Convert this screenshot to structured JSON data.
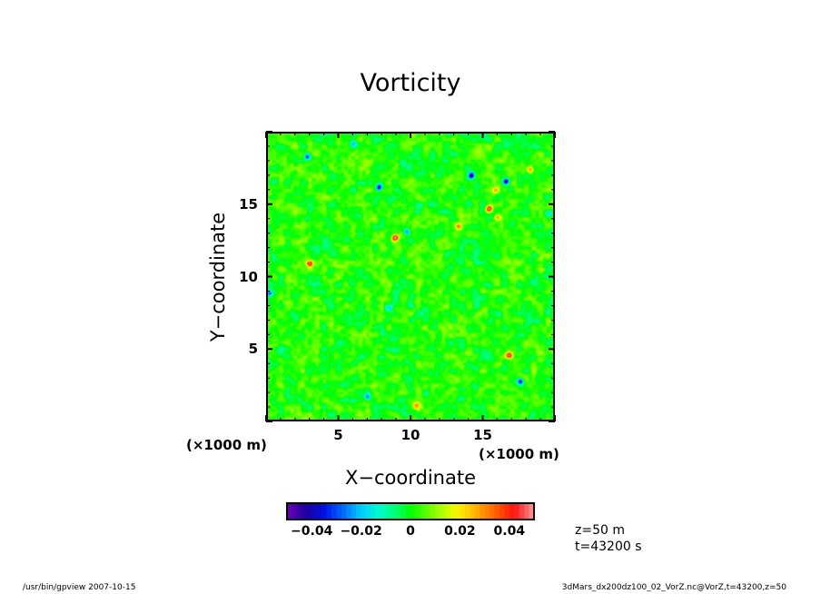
{
  "chart_data": {
    "type": "heatmap",
    "title": "Vorticity",
    "xlabel": "X−coordinate",
    "ylabel": "Y−coordinate",
    "x_unit": "(×1000 m)",
    "y_unit": "(×1000 m)",
    "xlim": [
      0,
      20
    ],
    "ylim": [
      0,
      20
    ],
    "x_ticks": [
      {
        "v": 5,
        "label": "5"
      },
      {
        "v": 10,
        "label": "10"
      },
      {
        "v": 15,
        "label": "15"
      }
    ],
    "y_ticks": [
      {
        "v": 5,
        "label": "5"
      },
      {
        "v": 10,
        "label": "10"
      },
      {
        "v": 15,
        "label": "15"
      }
    ],
    "minor_tick_step": 1,
    "colorbar": {
      "range": [
        -0.05,
        0.05
      ],
      "levels": 50,
      "ticks": [
        {
          "v": -0.04,
          "label": "−0.04"
        },
        {
          "v": -0.02,
          "label": "−0.02"
        },
        {
          "v": 0,
          "label": "0"
        },
        {
          "v": 0.02,
          "label": "0.02"
        },
        {
          "v": 0.04,
          "label": "0.04"
        }
      ],
      "color_stops": [
        [
          -0.05,
          "#6a00b4"
        ],
        [
          -0.042,
          "#1c00a0"
        ],
        [
          -0.035,
          "#0010e0"
        ],
        [
          -0.028,
          "#0060ff"
        ],
        [
          -0.02,
          "#00ccff"
        ],
        [
          -0.012,
          "#00ffc8"
        ],
        [
          -0.004,
          "#00ff50"
        ],
        [
          0,
          "#00ff00"
        ],
        [
          0.008,
          "#70ff00"
        ],
        [
          0.016,
          "#d8ff00"
        ],
        [
          0.02,
          "#ffee00"
        ],
        [
          0.028,
          "#ffa000"
        ],
        [
          0.036,
          "#ff5000"
        ],
        [
          0.042,
          "#ff1010"
        ],
        [
          0.05,
          "#ff9898"
        ]
      ]
    },
    "background_noise_amplitude": 0.009,
    "vortices": [
      {
        "x": 6.0,
        "y": 19.2,
        "v": -0.022
      },
      {
        "x": 2.85,
        "y": 18.3,
        "v": -0.036
      },
      {
        "x": 7.8,
        "y": 16.2,
        "v": -0.046
      },
      {
        "x": 14.2,
        "y": 17.0,
        "v": -0.05
      },
      {
        "x": 16.6,
        "y": 16.6,
        "v": -0.05
      },
      {
        "x": 18.3,
        "y": 17.4,
        "v": 0.026
      },
      {
        "x": 15.9,
        "y": 16.0,
        "v": 0.022
      },
      {
        "x": 15.4,
        "y": 14.7,
        "v": 0.048
      },
      {
        "x": 16.0,
        "y": 14.1,
        "v": 0.032
      },
      {
        "x": 13.3,
        "y": 13.5,
        "v": 0.03
      },
      {
        "x": 9.7,
        "y": 13.1,
        "v": -0.03
      },
      {
        "x": 8.9,
        "y": 12.7,
        "v": 0.05
      },
      {
        "x": 3.0,
        "y": 10.9,
        "v": 0.045
      },
      {
        "x": 0.2,
        "y": 8.9,
        "v": -0.032
      },
      {
        "x": 8.5,
        "y": 7.8,
        "v": -0.018
      },
      {
        "x": 16.8,
        "y": 4.6,
        "v": 0.046
      },
      {
        "x": 17.6,
        "y": 2.8,
        "v": -0.042
      },
      {
        "x": 7.0,
        "y": 1.7,
        "v": -0.026
      },
      {
        "x": 10.4,
        "y": 1.1,
        "v": 0.026
      },
      {
        "x": 19.6,
        "y": 14.4,
        "v": -0.022
      }
    ]
  },
  "info": {
    "z": "z=50  m",
    "t": "t=43200  s"
  },
  "footer": {
    "left": "/usr/bin/gpview   2007-10-15",
    "right": "3dMars_dx200dz100_02_VorZ.nc@VorZ,t=43200,z=50"
  }
}
